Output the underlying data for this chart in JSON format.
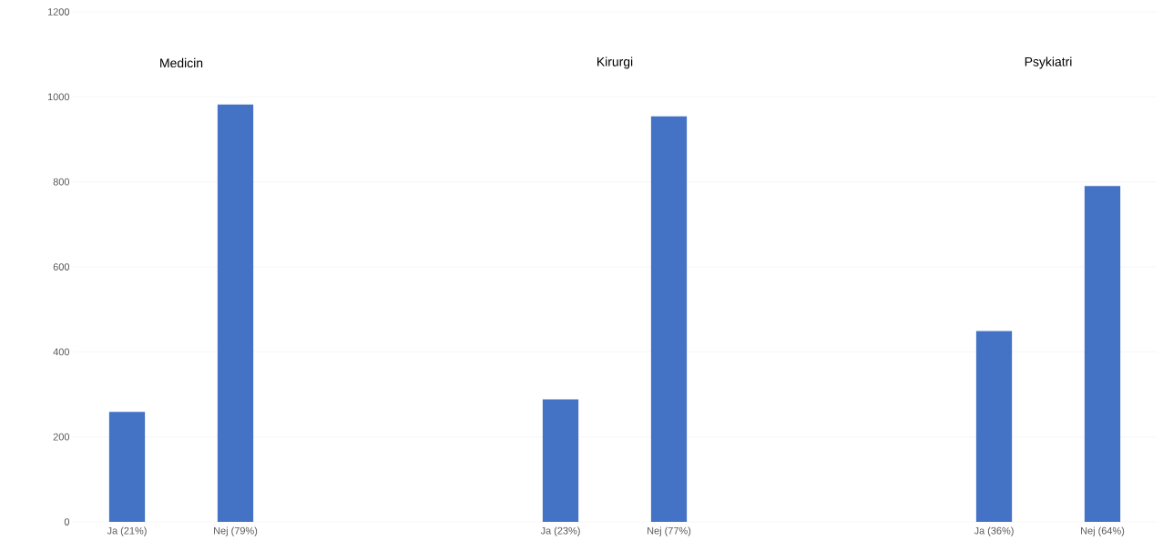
{
  "chart_data": {
    "type": "bar",
    "categories": [
      "Ja (21%)",
      "Nej (79%)",
      null,
      null,
      "Ja (23%)",
      "Nej (77%)",
      null,
      null,
      "Ja (36%)",
      "Nej (64%)"
    ],
    "values": [
      259,
      982,
      null,
      null,
      288,
      954,
      null,
      null,
      449,
      790
    ],
    "color": "#4472c4",
    "ylim": [
      0,
      1200
    ],
    "yticks": [
      0,
      200,
      400,
      600,
      800,
      1000,
      1200
    ],
    "grid": "y",
    "annotations": [
      "Medicin",
      "Kirurgi",
      "Psykiatri"
    ]
  }
}
